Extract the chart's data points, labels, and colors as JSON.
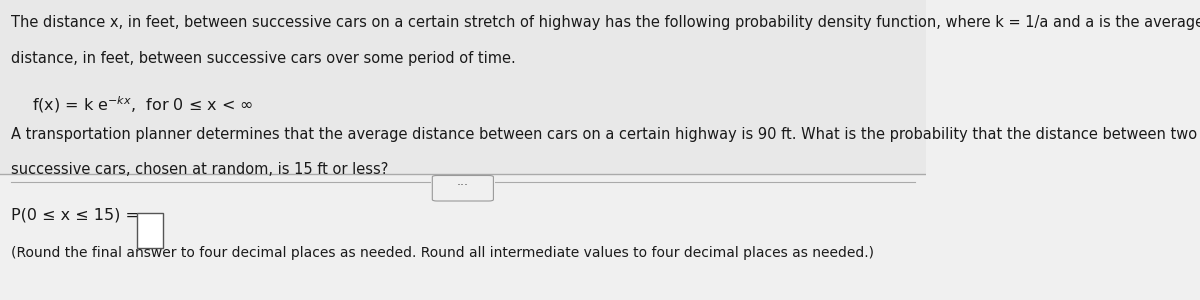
{
  "bg_color": "#f0f0f0",
  "top_section_bg": "#e8e8e8",
  "bottom_section_bg": "#f0f0f0",
  "divider_color": "#aaaaaa",
  "text_color": "#1a1a1a",
  "line1": "The distance x, in feet, between successive cars on a certain stretch of highway has the following probability density function, where k = 1/a and a is the average",
  "line2": "distance, in feet, between successive cars over some period of time.",
  "formula_parts": {
    "prefix": "f(x) = k e",
    "superscript": "−kx",
    "suffix": ",  for 0 ≤ x < ∞"
  },
  "question_line1": "A transportation planner determines that the average distance between cars on a certain highway is 90 ft. What is the probability that the distance between two",
  "question_line2": "successive cars, chosen at random, is 15 ft or less?",
  "answer_label": "P(0 ≤ x ≤ 15) =",
  "round_note": "(Round the final answer to four decimal places as needed. Round all intermediate values to four decimal places as needed.)",
  "dots": "…",
  "font_size_main": 10.5,
  "font_size_formula": 11.5,
  "font_size_answer": 11.5,
  "font_size_note": 10.0
}
